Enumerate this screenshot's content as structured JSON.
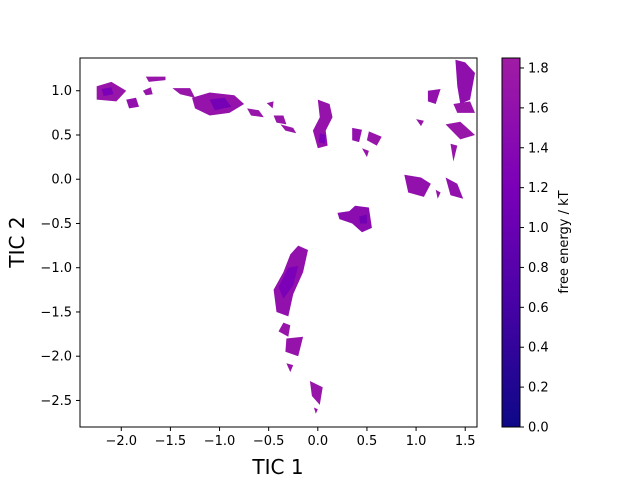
{
  "chart_data": {
    "type": "heatmap",
    "title": "",
    "xlabel": "TIC 1",
    "ylabel": "TIC 2",
    "xlim": [
      -2.42,
      1.62
    ],
    "ylim": [
      -2.8,
      1.37
    ],
    "xticks": [
      -2.0,
      -1.5,
      -1.0,
      -0.5,
      0.0,
      0.5,
      1.0,
      1.5
    ],
    "xtick_labels": [
      "−2.0",
      "−1.5",
      "−1.0",
      "−0.5",
      "0.0",
      "0.5",
      "1.0",
      "1.5"
    ],
    "yticks": [
      1.0,
      0.5,
      0.0,
      -0.5,
      -1.0,
      -1.5,
      -2.0,
      -2.5
    ],
    "ytick_labels": [
      "1.0",
      "0.5",
      "0.0",
      "−0.5",
      "−1.0",
      "−1.5",
      "−2.0",
      "−2.5"
    ],
    "colorbar": {
      "label": "free energy / kT",
      "range": [
        0.0,
        1.85
      ],
      "ticks": [
        0.0,
        0.2,
        0.4,
        0.6,
        0.8,
        1.0,
        1.2,
        1.4,
        1.6,
        1.8
      ],
      "tick_labels": [
        "0.0",
        "0.2",
        "0.4",
        "0.6",
        "0.8",
        "1.0",
        "1.2",
        "1.4",
        "1.6",
        "1.8"
      ],
      "colormap": "plasma-like",
      "color_low": "#0d0887",
      "color_mid": "#7b00b8",
      "color_high": "#a01ca4"
    },
    "regions": [
      {
        "name": "upper-left-arm",
        "points": [
          [
            -2.25,
            1.05
          ],
          [
            -2.1,
            1.1
          ],
          [
            -1.95,
            1.0
          ],
          [
            -2.05,
            0.88
          ],
          [
            -2.25,
            0.9
          ]
        ],
        "value": 1.7
      },
      {
        "name": "upper-left-dark",
        "points": [
          [
            -2.2,
            1.02
          ],
          [
            -2.1,
            1.04
          ],
          [
            -2.08,
            0.96
          ],
          [
            -2.18,
            0.94
          ]
        ],
        "value": 1.2
      },
      {
        "name": "upper-left-spot",
        "points": [
          [
            -1.95,
            0.9
          ],
          [
            -1.85,
            0.92
          ],
          [
            -1.82,
            0.82
          ],
          [
            -1.92,
            0.8
          ]
        ],
        "value": 1.6
      },
      {
        "name": "upper-left-spot2",
        "points": [
          [
            -1.78,
            1.0
          ],
          [
            -1.7,
            1.04
          ],
          [
            -1.68,
            0.96
          ],
          [
            -1.75,
            0.95
          ]
        ],
        "value": 1.7
      },
      {
        "name": "upper-left-top",
        "points": [
          [
            -1.75,
            1.16
          ],
          [
            -1.55,
            1.16
          ],
          [
            -1.55,
            1.12
          ],
          [
            -1.72,
            1.1
          ]
        ],
        "value": 1.7
      },
      {
        "name": "ridge-1",
        "points": [
          [
            -1.48,
            1.03
          ],
          [
            -1.3,
            1.03
          ],
          [
            -1.25,
            0.92
          ],
          [
            -1.4,
            0.96
          ]
        ],
        "value": 1.7
      },
      {
        "name": "ridge-2",
        "points": [
          [
            -1.28,
            0.92
          ],
          [
            -1.1,
            0.98
          ],
          [
            -0.85,
            0.95
          ],
          [
            -0.75,
            0.85
          ],
          [
            -0.9,
            0.75
          ],
          [
            -1.1,
            0.72
          ],
          [
            -1.25,
            0.8
          ]
        ],
        "value": 1.65
      },
      {
        "name": "ridge-2-core",
        "points": [
          [
            -1.1,
            0.9
          ],
          [
            -0.95,
            0.92
          ],
          [
            -0.88,
            0.82
          ],
          [
            -1.05,
            0.78
          ]
        ],
        "value": 1.15
      },
      {
        "name": "ridge-3",
        "points": [
          [
            -0.72,
            0.8
          ],
          [
            -0.6,
            0.78
          ],
          [
            -0.55,
            0.7
          ],
          [
            -0.68,
            0.72
          ]
        ],
        "value": 1.7
      },
      {
        "name": "ridge-4",
        "points": [
          [
            -0.52,
            0.86
          ],
          [
            -0.45,
            0.88
          ],
          [
            -0.46,
            0.8
          ]
        ],
        "value": 1.7
      },
      {
        "name": "ridge-5",
        "points": [
          [
            -0.45,
            0.72
          ],
          [
            -0.35,
            0.72
          ],
          [
            -0.32,
            0.62
          ],
          [
            -0.42,
            0.64
          ]
        ],
        "value": 1.7
      },
      {
        "name": "ridge-6",
        "points": [
          [
            -0.38,
            0.62
          ],
          [
            -0.25,
            0.58
          ],
          [
            -0.22,
            0.52
          ],
          [
            -0.33,
            0.55
          ]
        ],
        "value": 1.7
      },
      {
        "name": "center-top",
        "points": [
          [
            0.0,
            0.9
          ],
          [
            0.12,
            0.85
          ],
          [
            0.15,
            0.7
          ],
          [
            0.08,
            0.55
          ],
          [
            0.1,
            0.38
          ],
          [
            0.0,
            0.35
          ],
          [
            -0.05,
            0.55
          ],
          [
            0.02,
            0.7
          ]
        ],
        "value": 1.65
      },
      {
        "name": "center-top-core",
        "points": [
          [
            0.02,
            0.52
          ],
          [
            0.08,
            0.5
          ],
          [
            0.07,
            0.4
          ],
          [
            0.01,
            0.42
          ]
        ],
        "value": 1.2
      },
      {
        "name": "center-right-1",
        "points": [
          [
            0.35,
            0.58
          ],
          [
            0.45,
            0.56
          ],
          [
            0.42,
            0.42
          ],
          [
            0.35,
            0.44
          ]
        ],
        "value": 1.6
      },
      {
        "name": "center-right-2",
        "points": [
          [
            0.52,
            0.54
          ],
          [
            0.65,
            0.48
          ],
          [
            0.6,
            0.38
          ],
          [
            0.5,
            0.44
          ]
        ],
        "value": 1.7
      },
      {
        "name": "center-right-3",
        "points": [
          [
            0.45,
            0.35
          ],
          [
            0.52,
            0.32
          ],
          [
            0.5,
            0.25
          ]
        ],
        "value": 1.7
      },
      {
        "name": "right-top-1",
        "points": [
          [
            1.12,
            1.0
          ],
          [
            1.25,
            1.02
          ],
          [
            1.2,
            0.85
          ],
          [
            1.12,
            0.88
          ]
        ],
        "value": 1.6
      },
      {
        "name": "right-top-2",
        "points": [
          [
            1.4,
            1.35
          ],
          [
            1.5,
            1.32
          ],
          [
            1.6,
            1.2
          ],
          [
            1.55,
            0.9
          ],
          [
            1.45,
            0.85
          ],
          [
            1.42,
            1.05
          ]
        ],
        "value": 1.55
      },
      {
        "name": "right-top-3",
        "points": [
          [
            1.38,
            0.85
          ],
          [
            1.55,
            0.88
          ],
          [
            1.6,
            0.75
          ],
          [
            1.42,
            0.75
          ]
        ],
        "value": 1.7
      },
      {
        "name": "right-mid-1",
        "points": [
          [
            1.3,
            0.62
          ],
          [
            1.45,
            0.65
          ],
          [
            1.6,
            0.5
          ],
          [
            1.45,
            0.45
          ]
        ],
        "value": 1.7
      },
      {
        "name": "right-mid-2",
        "points": [
          [
            1.35,
            0.4
          ],
          [
            1.42,
            0.38
          ],
          [
            1.38,
            0.2
          ]
        ],
        "value": 1.7
      },
      {
        "name": "right-mid-3",
        "points": [
          [
            1.0,
            0.68
          ],
          [
            1.08,
            0.66
          ],
          [
            1.05,
            0.6
          ]
        ],
        "value": 1.7
      },
      {
        "name": "right-low-1",
        "points": [
          [
            0.88,
            0.05
          ],
          [
            1.05,
            0.02
          ],
          [
            1.15,
            -0.05
          ],
          [
            1.08,
            -0.2
          ],
          [
            0.92,
            -0.15
          ]
        ],
        "value": 1.6
      },
      {
        "name": "right-low-2",
        "points": [
          [
            1.3,
            0.02
          ],
          [
            1.42,
            -0.05
          ],
          [
            1.48,
            -0.22
          ],
          [
            1.35,
            -0.18
          ]
        ],
        "value": 1.6
      },
      {
        "name": "right-low-3",
        "points": [
          [
            1.2,
            -0.12
          ],
          [
            1.25,
            -0.15
          ],
          [
            1.22,
            -0.22
          ]
        ],
        "value": 1.7
      },
      {
        "name": "center-low-1",
        "points": [
          [
            0.38,
            -0.3
          ],
          [
            0.52,
            -0.32
          ],
          [
            0.55,
            -0.55
          ],
          [
            0.45,
            -0.6
          ],
          [
            0.35,
            -0.5
          ],
          [
            0.22,
            -0.45
          ],
          [
            0.2,
            -0.38
          ],
          [
            0.32,
            -0.36
          ]
        ],
        "value": 1.5
      },
      {
        "name": "center-low-core",
        "points": [
          [
            0.42,
            -0.42
          ],
          [
            0.5,
            -0.4
          ],
          [
            0.5,
            -0.5
          ],
          [
            0.43,
            -0.5
          ]
        ],
        "value": 1.1
      },
      {
        "name": "lower-stem",
        "points": [
          [
            -0.2,
            -0.75
          ],
          [
            -0.1,
            -0.8
          ],
          [
            -0.15,
            -1.05
          ],
          [
            -0.25,
            -1.3
          ],
          [
            -0.3,
            -1.55
          ],
          [
            -0.42,
            -1.5
          ],
          [
            -0.45,
            -1.25
          ],
          [
            -0.35,
            -1.05
          ],
          [
            -0.28,
            -0.85
          ]
        ],
        "value": 1.6
      },
      {
        "name": "lower-stem-core",
        "points": [
          [
            -0.3,
            -1.0
          ],
          [
            -0.2,
            -0.98
          ],
          [
            -0.25,
            -1.2
          ],
          [
            -0.35,
            -1.35
          ],
          [
            -0.4,
            -1.22
          ]
        ],
        "value": 1.2
      },
      {
        "name": "lower-stem-2",
        "points": [
          [
            -0.35,
            -1.62
          ],
          [
            -0.28,
            -1.65
          ],
          [
            -0.3,
            -1.78
          ],
          [
            -0.4,
            -1.72
          ]
        ],
        "value": 1.7
      },
      {
        "name": "lower-stem-3",
        "points": [
          [
            -0.32,
            -1.8
          ],
          [
            -0.15,
            -1.78
          ],
          [
            -0.2,
            -2.0
          ],
          [
            -0.33,
            -1.95
          ]
        ],
        "value": 1.65
      },
      {
        "name": "lower-stem-4",
        "points": [
          [
            -0.32,
            -2.08
          ],
          [
            -0.25,
            -2.1
          ],
          [
            -0.28,
            -2.18
          ]
        ],
        "value": 1.7
      },
      {
        "name": "lower-stem-5",
        "points": [
          [
            -0.08,
            -2.28
          ],
          [
            0.05,
            -2.35
          ],
          [
            0.02,
            -2.55
          ],
          [
            -0.06,
            -2.45
          ]
        ],
        "value": 1.7
      },
      {
        "name": "lower-stem-6",
        "points": [
          [
            -0.04,
            -2.58
          ],
          [
            0.0,
            -2.6
          ],
          [
            -0.02,
            -2.65
          ]
        ],
        "value": 1.7
      }
    ]
  }
}
